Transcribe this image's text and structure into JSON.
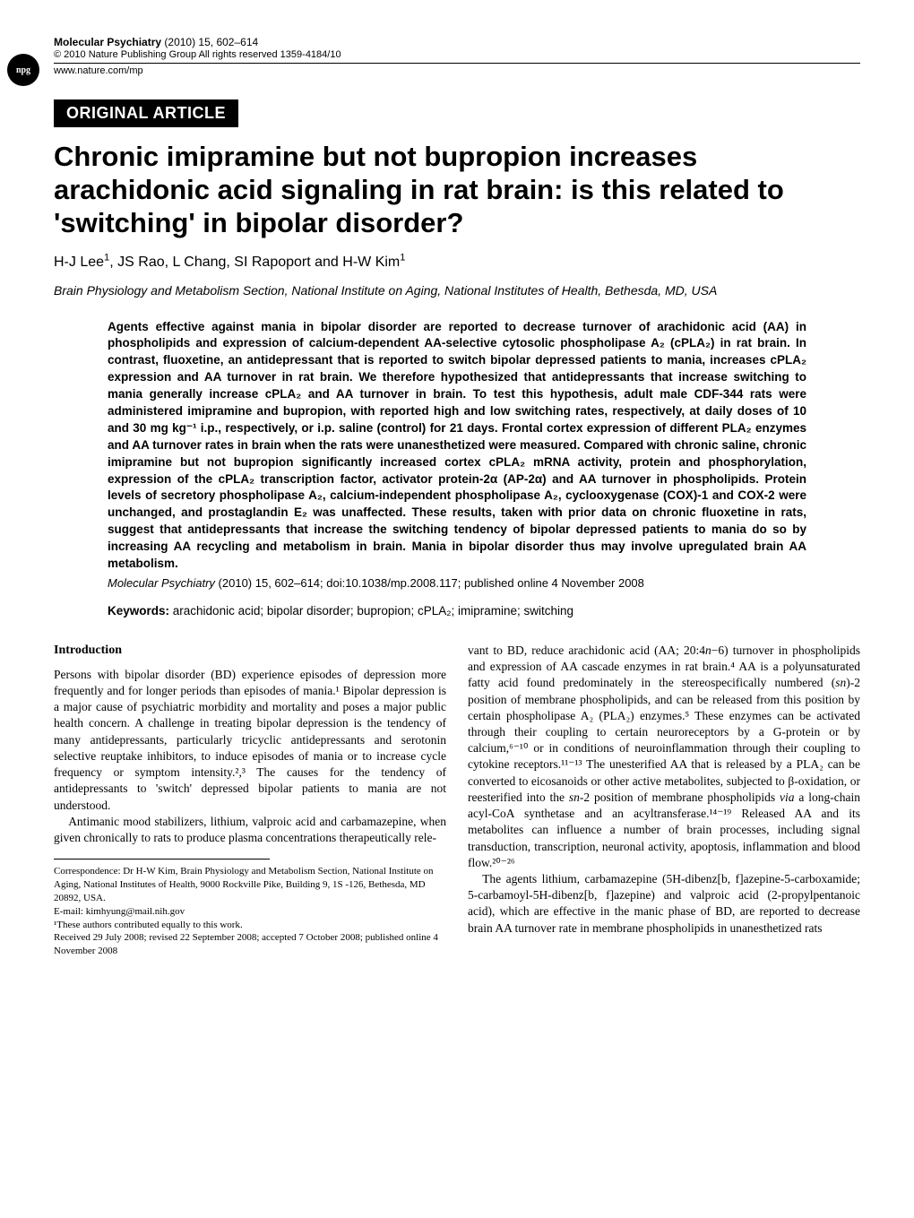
{
  "header": {
    "journal_name": "Molecular Psychiatry",
    "year_vol_pages": "(2010) 15, 602–614",
    "copyright": "© 2010 Nature Publishing Group   All rights reserved 1359-4184/10",
    "url": "www.nature.com/mp",
    "npg_label": "npg"
  },
  "article_type_badge": "ORIGINAL ARTICLE",
  "title": "Chronic imipramine but not bupropion increases arachidonic acid signaling in rat brain: is this related to 'switching' in bipolar disorder?",
  "authors_prefix": "H-J Lee",
  "authors_sup1": "1",
  "authors_mid": ", JS Rao, L Chang, SI Rapoport and H-W Kim",
  "authors_sup2": "1",
  "affiliation": "Brain Physiology and Metabolism Section, National Institute on Aging, National Institutes of Health, Bethesda, MD, USA",
  "abstract_text": "Agents effective against mania in bipolar disorder are reported to decrease turnover of arachidonic acid (AA) in phospholipids and expression of calcium-dependent AA-selective cytosolic phospholipase A₂ (cPLA₂) in rat brain. In contrast, fluoxetine, an antidepressant that is reported to switch bipolar depressed patients to mania, increases cPLA₂ expression and AA turnover in rat brain. We therefore hypothesized that antidepressants that increase switching to mania generally increase cPLA₂ and AA turnover in brain. To test this hypothesis, adult male CDF-344 rats were administered imipramine and bupropion, with reported high and low switching rates, respectively, at daily doses of 10 and 30 mg kg⁻¹ i.p., respectively, or i.p. saline (control) for 21 days. Frontal cortex expression of different PLA₂ enzymes and AA turnover rates in brain when the rats were unanesthetized were measured. Compared with chronic saline, chronic imipramine but not bupropion significantly increased cortex cPLA₂ mRNA activity, protein and phosphorylation, expression of the cPLA₂ transcription factor, activator protein-2α (AP-2α) and AA turnover in phospholipids. Protein levels of secretory phospholipase A₂, calcium-independent phospholipase A₂, cyclooxygenase (COX)-1 and COX-2 were unchanged, and prostaglandin E₂ was unaffected. These results, taken with prior data on chronic fluoxetine in rats, suggest that antidepressants that increase the switching tendency of bipolar depressed patients to mania do so by increasing AA recycling and metabolism in brain. Mania in bipolar disorder thus may involve upregulated brain AA metabolism.",
  "abstract_citation_journal": "Molecular Psychiatry",
  "abstract_citation_rest": " (2010) 15, 602–614; doi:10.1038/mp.2008.117; published online 4 November 2008",
  "keywords_label": "Keywords:",
  "keywords_text": " arachidonic acid; bipolar disorder; bupropion; cPLA₂; imipramine; switching",
  "intro_heading": "Introduction",
  "col_left": {
    "p1": "Persons with bipolar disorder (BD) experience episodes of depression more frequently and for longer periods than episodes of mania.¹ Bipolar depression is a major cause of psychiatric morbidity and mortality and poses a major public health concern. A challenge in treating bipolar depression is the tendency of many antidepressants, particularly tricyclic antidepressants and serotonin selective reuptake inhibitors, to induce episodes of mania or to increase cycle frequency or symptom intensity.²,³ The causes for the tendency of antidepressants to 'switch' depressed bipolar patients to mania are not understood.",
    "p2": "Antimanic mood stabilizers, lithium, valproic acid and carbamazepine, when given chronically to rats to produce plasma concentrations therapeutically rele-"
  },
  "col_right": {
    "p1_a": "vant to BD, reduce arachidonic acid (AA; 20:4",
    "p1_b": "n",
    "p1_c": "−6) turnover in phospholipids and expression of AA cascade enzymes in rat brain.⁴ AA is a polyunsaturated fatty acid found predominately in the stereospecifically numbered (",
    "p1_d": "sn",
    "p1_e": ")-2 position of membrane phospholipids, and can be released from this position by certain phospholipase A₂ (PLA₂) enzymes.⁵ These enzymes can be activated through their coupling to certain neuroreceptors by a G-protein or by calcium,⁶⁻¹⁰ or in conditions of neuroinflammation through their coupling to cytokine receptors.¹¹⁻¹³ The unesterified AA that is released by a PLA₂ can be converted to eicosanoids or other active metabolites, subjected to β-oxidation, or reesterified into the ",
    "p1_f": "sn",
    "p1_g": "-2 position of membrane phospholipids ",
    "p1_h": "via",
    "p1_i": " a long-chain acyl-CoA synthetase and an acyltransferase.¹⁴⁻¹⁹ Released AA and its metabolites can influence a number of brain processes, including signal transduction, transcription, neuronal activity, apoptosis, inflammation and blood flow.²⁰⁻²⁶",
    "p2": "The agents lithium, carbamazepine (5H-dibenz[b, f]azepine-5-carboxamide; 5-carbamoyl-5H-dibenz[b, f]azepine) and valproic acid (2-propylpentanoic acid), which are effective in the manic phase of BD, are reported to decrease brain AA turnover rate in membrane phospholipids in unanesthetized rats"
  },
  "footnotes": {
    "correspondence": "Correspondence: Dr H-W Kim, Brain Physiology and Metabolism Section, National Institute on Aging, National Institutes of Health, 9000 Rockville Pike, Building 9, 1S -126, Bethesda, MD 20892, USA.",
    "email": "E-mail: kimhyung@mail.nih.gov",
    "equal": "¹These authors contributed equally to this work.",
    "received": "Received 29 July 2008; revised 22 September 2008; accepted 7 October 2008; published online 4 November 2008"
  }
}
